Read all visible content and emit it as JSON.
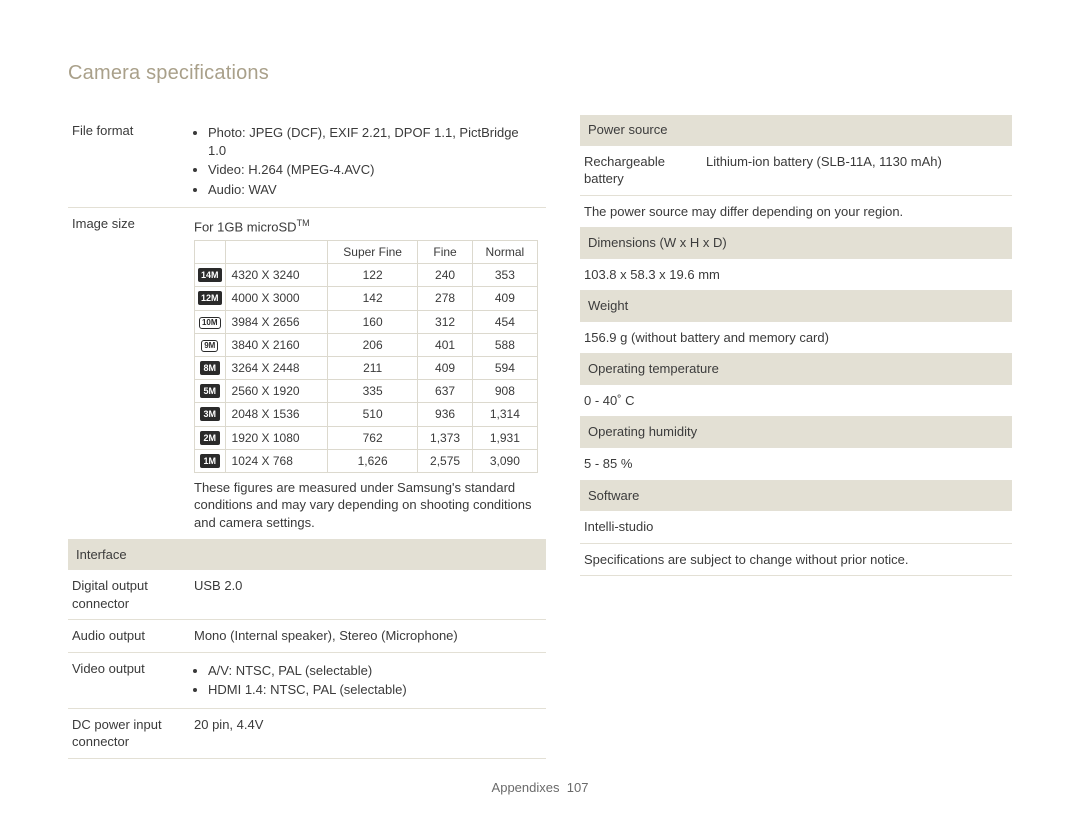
{
  "title": "Camera specifications",
  "footer": {
    "label": "Appendixes",
    "page": "107"
  },
  "left": {
    "file_format": {
      "label": "File format",
      "items": [
        "Photo: JPEG (DCF), EXIF 2.21, DPOF 1.1, PictBridge 1.0",
        "Video: H.264 (MPEG-4.AVC)",
        "Audio: WAV"
      ]
    },
    "image_size": {
      "label": "Image size",
      "lead": "For 1GB microSD",
      "lead_sup": "TM",
      "headers": [
        "",
        "",
        "Super Fine",
        "Fine",
        "Normal"
      ],
      "rows": [
        {
          "icon": "14M",
          "iconStyle": "dark",
          "res": "4320 X 3240",
          "sf": "122",
          "f": "240",
          "n": "353"
        },
        {
          "icon": "12M",
          "iconStyle": "dark",
          "res": "4000 X 3000",
          "sf": "142",
          "f": "278",
          "n": "409"
        },
        {
          "icon": "10M",
          "iconStyle": "wide",
          "res": "3984 X 2656",
          "sf": "160",
          "f": "312",
          "n": "454"
        },
        {
          "icon": "9M",
          "iconStyle": "wide",
          "res": "3840 X 2160",
          "sf": "206",
          "f": "401",
          "n": "588"
        },
        {
          "icon": "8M",
          "iconStyle": "dark",
          "res": "3264 X 2448",
          "sf": "211",
          "f": "409",
          "n": "594"
        },
        {
          "icon": "5M",
          "iconStyle": "dark",
          "res": "2560 X 1920",
          "sf": "335",
          "f": "637",
          "n": "908"
        },
        {
          "icon": "3M",
          "iconStyle": "dark",
          "res": "2048 X 1536",
          "sf": "510",
          "f": "936",
          "n": "1,314"
        },
        {
          "icon": "2M",
          "iconStyle": "dark",
          "res": "1920 X 1080",
          "sf": "762",
          "f": "1,373",
          "n": "1,931"
        },
        {
          "icon": "1M",
          "iconStyle": "dark",
          "res": "1024 X 768",
          "sf": "1,626",
          "f": "2,575",
          "n": "3,090"
        }
      ],
      "note": "These figures are measured under Samsung's standard conditions and may vary depending on shooting conditions and camera settings."
    },
    "interface": {
      "header": "Interface",
      "digital_output": {
        "label": "Digital output connector",
        "value": "USB 2.0"
      },
      "audio_output": {
        "label": "Audio output",
        "value": "Mono (Internal speaker), Stereo (Microphone)"
      },
      "video_output": {
        "label": "Video output",
        "items": [
          "A/V: NTSC, PAL (selectable)",
          "HDMI 1.4: NTSC, PAL (selectable)"
        ]
      },
      "dc_power": {
        "label": "DC power input connector",
        "value": "20 pin, 4.4V"
      }
    }
  },
  "right": {
    "power_source": {
      "header": "Power source",
      "battery": {
        "label": "Rechargeable battery",
        "value": "Lithium-ion battery (SLB-11A, 1130 mAh)"
      },
      "note": "The power source may differ depending on your region."
    },
    "dimensions": {
      "header": "Dimensions (W x H x D)",
      "value": "103.8 x 58.3 x 19.6 mm"
    },
    "weight": {
      "header": "Weight",
      "value": "156.9 g (without battery and memory card)"
    },
    "op_temp": {
      "header": "Operating temperature",
      "value": "0 - 40˚ C"
    },
    "op_humid": {
      "header": "Operating humidity",
      "value": "5 - 85 %"
    },
    "software": {
      "header": "Software",
      "value": "Intelli-studio"
    },
    "disclaimer": "Specifications are subject to change without prior notice."
  }
}
